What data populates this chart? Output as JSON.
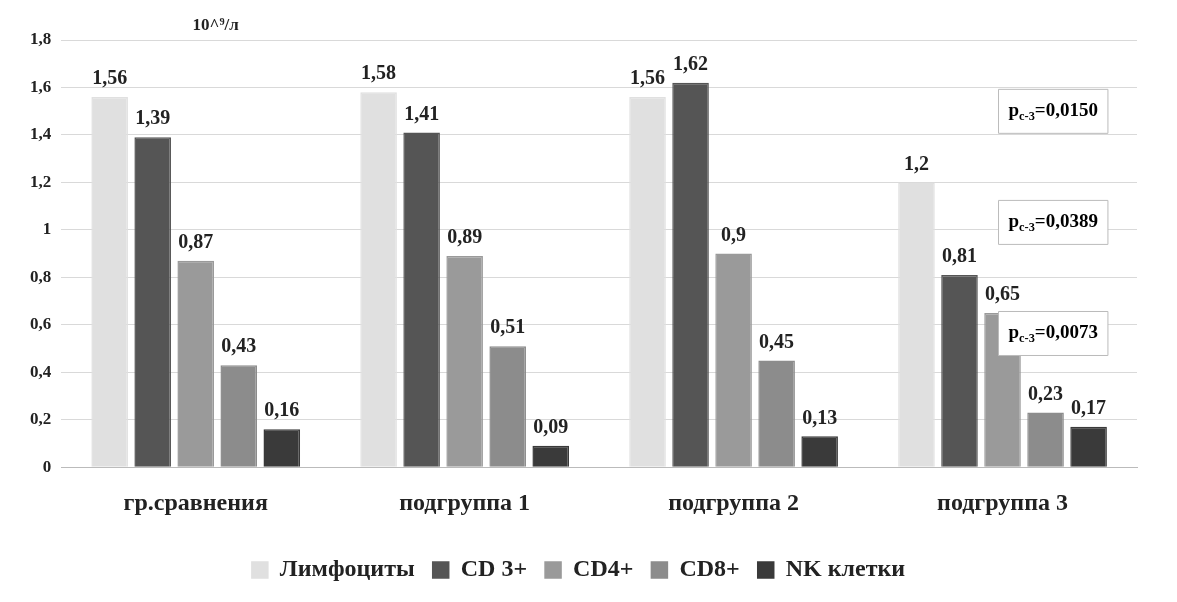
{
  "chart_data": {
    "type": "bar",
    "categories": [
      "гр.сравнения",
      "подгруппа 1",
      "подгруппа 2",
      "подгруппа 3"
    ],
    "series": [
      {
        "name": "Лимфоциты",
        "color": "#e0e0e0",
        "values": [
          1.56,
          1.58,
          1.56,
          1.2
        ],
        "value_labels": [
          "1,56",
          "1,58",
          "1,56",
          "1,2"
        ]
      },
      {
        "name": "CD 3+",
        "color": "#555555",
        "values": [
          1.39,
          1.41,
          1.62,
          0.81
        ],
        "value_labels": [
          "1,39",
          "1,41",
          "1,62",
          "0,81"
        ]
      },
      {
        "name": "CD4+",
        "color": "#9a9a9a",
        "values": [
          0.87,
          0.89,
          0.9,
          0.65
        ],
        "value_labels": [
          "0,87",
          "0,89",
          "0,9",
          "0,65"
        ]
      },
      {
        "name": "CD8+",
        "color": "#8c8c8c",
        "values": [
          0.43,
          0.51,
          0.45,
          0.23
        ],
        "value_labels": [
          "0,43",
          "0,51",
          "0,45",
          "0,23"
        ]
      },
      {
        "name": "NK клетки",
        "color": "#3a3a3a",
        "values": [
          0.16,
          0.09,
          0.13,
          0.17
        ],
        "value_labels": [
          "0,16",
          "0,09",
          "0,13",
          "0,17"
        ]
      }
    ],
    "ylim": [
      0,
      1.8
    ],
    "yticks": [
      0,
      {
        "value": 0.2,
        "label": "0,2"
      },
      {
        "value": 0.4,
        "label": "0,4"
      },
      {
        "value": 0.6,
        "label": "0,6"
      },
      {
        "value": 0.8,
        "label": "0,8"
      },
      1,
      {
        "value": 1.2,
        "label": "1,2"
      },
      {
        "value": 1.4,
        "label": "1,4"
      },
      {
        "value": 1.6,
        "label": "1,6"
      },
      {
        "value": 1.8,
        "label": "1,8"
      }
    ],
    "grid": "y",
    "legend": "bottom",
    "annotations": [
      "10^⁹/л",
      "p$_{c-3}$=0,0150",
      "p$_{c-3}$=0,0389",
      "p$_{c-3}$=0,0073"
    ]
  }
}
